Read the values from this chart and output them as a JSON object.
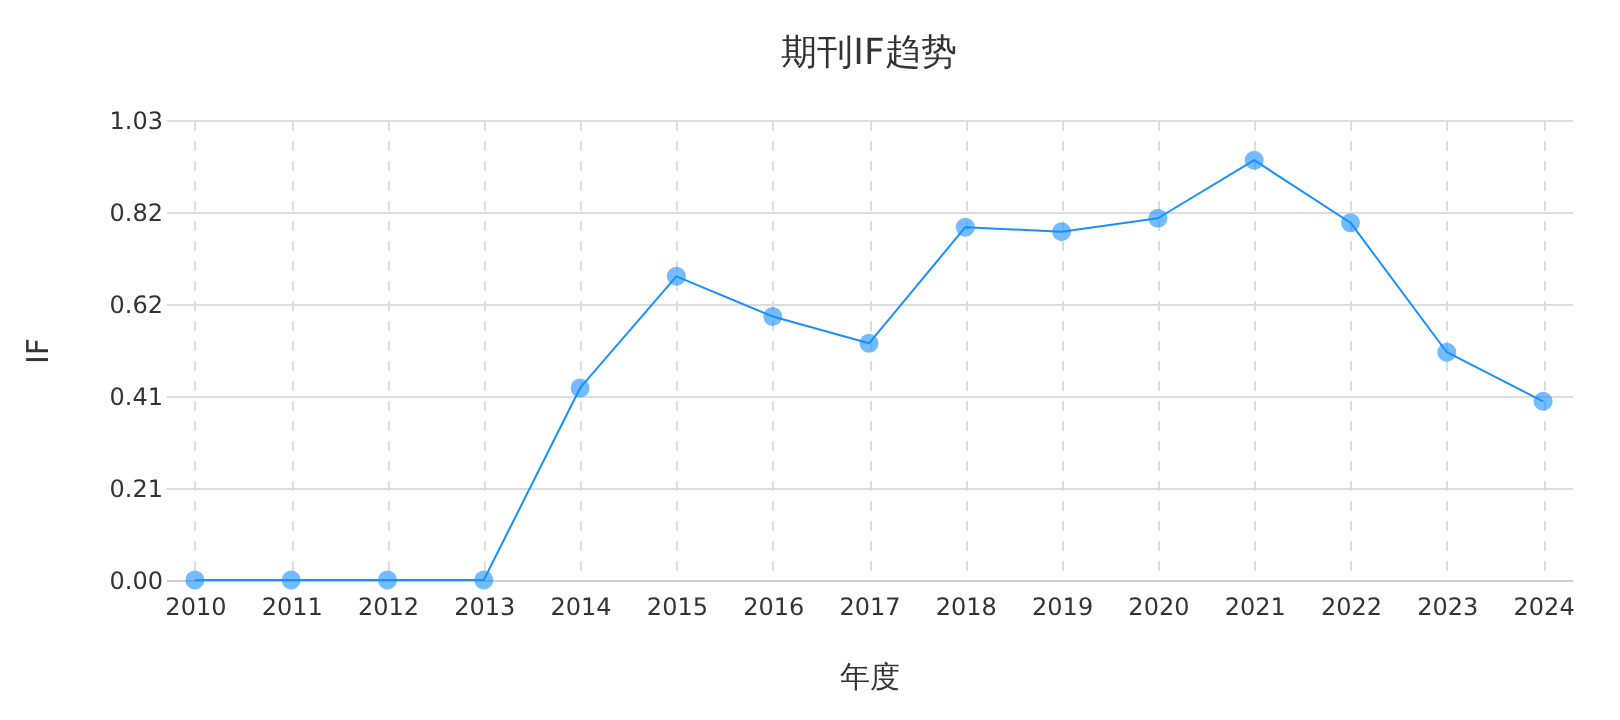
{
  "chart_data": {
    "type": "line",
    "title": "期刊IF趋势",
    "xlabel": "年度",
    "ylabel": "IF",
    "categories": [
      "2010",
      "2011",
      "2012",
      "2013",
      "2014",
      "2015",
      "2016",
      "2017",
      "2018",
      "2019",
      "2020",
      "2021",
      "2022",
      "2023",
      "2024"
    ],
    "series": [
      {
        "color": "#1890ff",
        "values": [
          0,
          0,
          0,
          0,
          0.43,
          0.68,
          0.59,
          0.53,
          0.79,
          0.78,
          0.81,
          0.94,
          0.8,
          0.51,
          0.4
        ]
      }
    ],
    "ylim": [
      0,
      1.03
    ],
    "yticks": [
      {
        "value": 0,
        "label": "0.00"
      },
      {
        "value": 0.206,
        "label": "0.21"
      },
      {
        "value": 0.412,
        "label": "0.41"
      },
      {
        "value": 0.618,
        "label": "0.62"
      },
      {
        "value": 0.824,
        "label": "0.82"
      },
      {
        "value": 1.03,
        "label": "1.03"
      }
    ],
    "grid": true,
    "marker": "circle",
    "line_style": "solid"
  }
}
